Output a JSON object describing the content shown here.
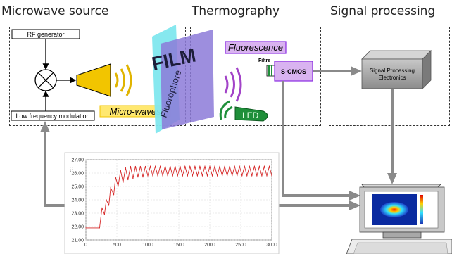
{
  "sections": {
    "microwave_source": "Microwave source",
    "thermography": "Thermography",
    "signal_processing": "Signal processing"
  },
  "microwave": {
    "rf_generator": "RF generator",
    "low_freq_mod": "Low frequency modulation",
    "micro_waves": "Micro-waves"
  },
  "sample": {
    "film": "FILM",
    "fluorophore": "Fluorophore"
  },
  "thermo": {
    "fluorescence": "Fluorescence",
    "filtre": "Filtre",
    "camera": "S-CMOS",
    "led": "LED"
  },
  "processing": {
    "box_line1": "Signal Processing",
    "box_line2": "Electronics"
  },
  "colors": {
    "yellow": "#f2c500",
    "purple_box": "#d9b3f0",
    "purple_border": "#8a2be2",
    "cyan": "#7fe7ee",
    "led_green": "#1f8f3a",
    "arrow_grey": "#8a8a8a",
    "curve_red": "#d62828"
  },
  "chart_data": {
    "type": "line",
    "y_unit": "°C",
    "xlim": [
      0,
      3000
    ],
    "ylim": [
      21,
      27
    ],
    "x_ticks": [
      "0",
      "500",
      "1000",
      "1500",
      "2000",
      "2500",
      "3000"
    ],
    "y_ticks": [
      "21.00",
      "22.00",
      "23.00",
      "24.00",
      "25.00",
      "26.00",
      "27.00"
    ],
    "grid": true,
    "series": [
      {
        "color": "#d62828",
        "x": [
          0,
          220,
          260,
          300,
          330,
          370,
          400,
          450,
          480,
          520,
          560,
          600,
          640,
          680,
          720,
          760,
          800,
          840,
          880,
          920,
          960,
          1000,
          1040,
          1080,
          1120,
          1160,
          1200,
          1240,
          1280,
          1320,
          1360,
          1400,
          1440,
          1480,
          1520,
          1560,
          1600,
          1640,
          1680,
          1720,
          1760,
          1800,
          1840,
          1880,
          1920,
          1960,
          2000,
          2040,
          2080,
          2120,
          2160,
          2200,
          2240,
          2280,
          2320,
          2360,
          2400,
          2440,
          2480,
          2520,
          2560,
          2600,
          2640,
          2680,
          2720,
          2760,
          2800,
          2840,
          2880,
          2920,
          2960,
          3000
        ],
        "y": [
          21.9,
          21.9,
          23.4,
          22.9,
          24.0,
          23.6,
          24.9,
          24.4,
          25.7,
          25.0,
          26.2,
          25.3,
          26.4,
          25.5,
          26.5,
          25.6,
          26.5,
          25.7,
          26.5,
          25.7,
          26.5,
          25.8,
          26.5,
          25.8,
          26.5,
          25.8,
          26.5,
          25.8,
          26.5,
          25.8,
          26.5,
          25.8,
          26.5,
          25.8,
          26.5,
          25.8,
          26.5,
          25.8,
          26.5,
          25.8,
          26.5,
          25.8,
          26.5,
          25.8,
          26.5,
          25.8,
          26.5,
          25.8,
          26.5,
          25.8,
          26.5,
          25.8,
          26.5,
          25.8,
          26.5,
          25.8,
          26.5,
          25.8,
          26.5,
          25.8,
          26.5,
          25.8,
          26.5,
          25.8,
          26.5,
          25.8,
          26.5,
          25.8,
          26.5,
          25.8,
          26.5,
          25.8
        ]
      }
    ]
  }
}
